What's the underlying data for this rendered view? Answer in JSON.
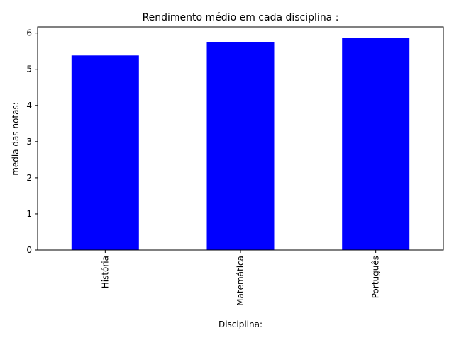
{
  "chart_data": {
    "type": "bar",
    "title": "Rendimento médio em cada disciplina :",
    "xlabel": "Disciplina:",
    "ylabel": "media das notas:",
    "categories": [
      "História",
      "Matemática",
      "Português"
    ],
    "values": [
      5.38,
      5.75,
      5.87
    ],
    "ylim": [
      0,
      6.17
    ],
    "yticks": [
      "0",
      "1",
      "2",
      "3",
      "4",
      "5",
      "6"
    ],
    "bar_color": "#0000ff",
    "grid": false,
    "legend": "none"
  }
}
